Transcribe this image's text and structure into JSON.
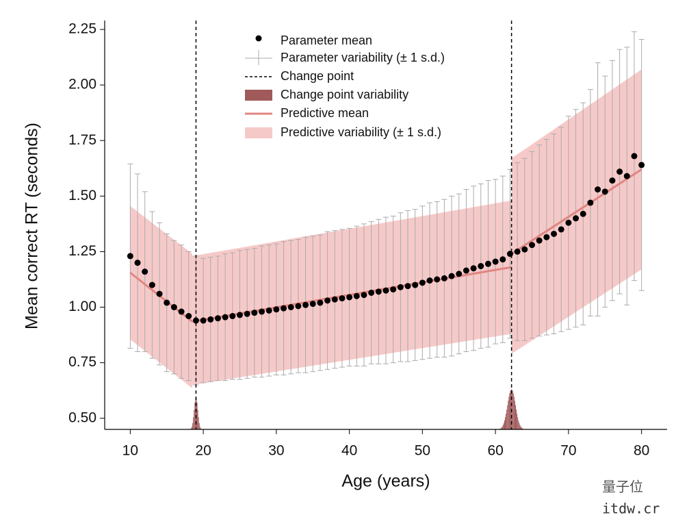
{
  "chart_data": {
    "type": "scatter",
    "xlabel": "Age (years)",
    "ylabel": "Mean correct RT (seconds)",
    "xlim": [
      6.5,
      83.5
    ],
    "ylim": [
      0.45,
      2.29
    ],
    "xticks": [
      10,
      20,
      30,
      40,
      50,
      60,
      70,
      80
    ],
    "yticks": [
      {
        "value": 0.5,
        "label": "0.50"
      },
      {
        "value": 0.75,
        "label": "0.75"
      },
      {
        "value": 1,
        "label": "1.00"
      },
      {
        "value": 1.25,
        "label": "1.25"
      },
      {
        "value": 1.5,
        "label": "1.50"
      },
      {
        "value": 1.75,
        "label": "1.75"
      },
      {
        "value": 2,
        "label": "2.00"
      },
      {
        "value": 2.25,
        "label": "2.25"
      }
    ],
    "points": {
      "name": "Parameter mean",
      "error_name": "Parameter variability (± 1 s.d.)",
      "color": "#000000",
      "error_color": "#aaaaaa",
      "x": [
        10,
        11,
        12,
        13,
        14,
        15,
        16,
        17,
        18,
        19,
        20,
        21,
        22,
        23,
        24,
        25,
        26,
        27,
        28,
        29,
        30,
        31,
        32,
        33,
        34,
        35,
        36,
        37,
        38,
        39,
        40,
        41,
        42,
        43,
        44,
        45,
        46,
        47,
        48,
        49,
        50,
        51,
        52,
        53,
        54,
        55,
        56,
        57,
        58,
        59,
        60,
        61,
        62,
        63,
        64,
        65,
        66,
        67,
        68,
        69,
        70,
        71,
        72,
        73,
        74,
        75,
        76,
        77,
        78,
        79,
        80
      ],
      "values": [
        1.23,
        1.2,
        1.16,
        1.1,
        1.06,
        1.02,
        1.0,
        0.98,
        0.96,
        0.94,
        0.94,
        0.945,
        0.95,
        0.955,
        0.96,
        0.965,
        0.97,
        0.975,
        0.98,
        0.985,
        0.99,
        0.995,
        1.0,
        1.005,
        1.01,
        1.015,
        1.02,
        1.03,
        1.035,
        1.04,
        1.045,
        1.05,
        1.055,
        1.065,
        1.07,
        1.075,
        1.08,
        1.09,
        1.095,
        1.1,
        1.11,
        1.12,
        1.125,
        1.13,
        1.14,
        1.15,
        1.165,
        1.175,
        1.185,
        1.195,
        1.205,
        1.215,
        1.24,
        1.25,
        1.26,
        1.28,
        1.3,
        1.315,
        1.33,
        1.35,
        1.38,
        1.4,
        1.42,
        1.47,
        1.53,
        1.52,
        1.57,
        1.61,
        1.59,
        1.68,
        1.64
      ],
      "errors": [
        0.415,
        0.4,
        0.36,
        0.33,
        0.32,
        0.31,
        0.3,
        0.3,
        0.29,
        0.29,
        0.28,
        0.28,
        0.28,
        0.285,
        0.285,
        0.29,
        0.29,
        0.29,
        0.295,
        0.295,
        0.295,
        0.3,
        0.3,
        0.3,
        0.305,
        0.305,
        0.305,
        0.31,
        0.31,
        0.31,
        0.31,
        0.315,
        0.32,
        0.32,
        0.325,
        0.33,
        0.33,
        0.335,
        0.34,
        0.34,
        0.345,
        0.35,
        0.35,
        0.355,
        0.36,
        0.36,
        0.365,
        0.37,
        0.37,
        0.375,
        0.37,
        0.375,
        0.38,
        0.4,
        0.41,
        0.42,
        0.43,
        0.44,
        0.45,
        0.46,
        0.48,
        0.49,
        0.5,
        0.51,
        0.57,
        0.52,
        0.54,
        0.55,
        0.58,
        0.56,
        0.565
      ]
    },
    "prediction": {
      "name": "Predictive mean",
      "band_name": "Predictive variability (± 1 s.d.)",
      "color": "#e08580",
      "band_color": "#f6c9c9",
      "segments": [
        {
          "x": [
            10,
            18.5
          ],
          "values": [
            1.155,
            0.935
          ],
          "lower": [
            0.855,
            0.635
          ],
          "upper": [
            1.455,
            1.24
          ]
        },
        {
          "x": [
            18.5,
            62.2
          ],
          "values": [
            0.935,
            1.18
          ],
          "lower": [
            0.65,
            0.88
          ],
          "upper": [
            1.23,
            1.48
          ]
        },
        {
          "x": [
            62.2,
            80
          ],
          "values": [
            1.24,
            1.62
          ],
          "lower": [
            0.79,
            1.17
          ],
          "upper": [
            1.67,
            2.07
          ]
        }
      ]
    },
    "change_points": {
      "name": "Change point",
      "values": [
        19,
        62.2
      ]
    },
    "change_point_variability": {
      "name": "Change point variability",
      "color": "#a05a5a",
      "sd": [
        0.25,
        0.55
      ],
      "peak": [
        0.595,
        0.63
      ]
    },
    "watermark": [
      "量子位",
      "itdw.cr"
    ]
  }
}
